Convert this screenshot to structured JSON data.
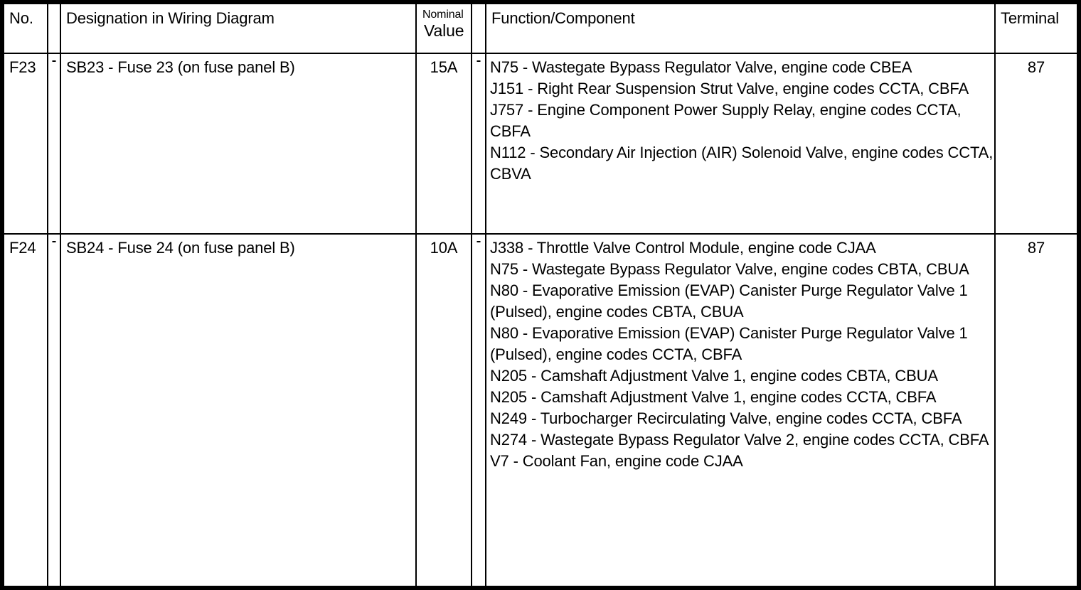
{
  "colors": {
    "border": "#000000",
    "background": "#ffffff",
    "text": "#000000"
  },
  "icons": {
    "row_marker": "tiny-dash-artifact"
  },
  "table": {
    "headers": {
      "no": "No.",
      "designation": "Designation in Wiring Diagram",
      "nominal_line1": "Nominal",
      "nominal_line2": "Value",
      "function": "Function/Component",
      "terminal": "Terminal"
    },
    "rows": [
      {
        "no": "F23",
        "designation": "SB23 - Fuse 23 (on fuse panel B)",
        "nominal_value": "15A",
        "terminal": "87",
        "functions": [
          "N75 - Wastegate Bypass Regulator Valve, engine code CBEA",
          "J151 - Right Rear Suspension Strut Valve, engine codes CCTA, CBFA",
          "J757 - Engine Component Power Supply Relay, engine codes CCTA, CBFA",
          "N112 - Secondary Air Injection (AIR) Solenoid Valve, engine codes CCTA, CBVA"
        ]
      },
      {
        "no": "F24",
        "designation": "SB24 - Fuse 24 (on fuse panel B)",
        "nominal_value": "10A",
        "terminal": "87",
        "functions": [
          "J338 - Throttle Valve Control Module, engine code CJAA",
          "N75 - Wastegate Bypass Regulator Valve, engine codes CBTA, CBUA",
          "N80 - Evaporative Emission (EVAP) Canister Purge Regulator Valve 1 (Pulsed), engine codes CBTA, CBUA",
          "N80 - Evaporative Emission (EVAP) Canister Purge Regulator Valve 1 (Pulsed), engine codes CCTA, CBFA",
          "N205 - Camshaft Adjustment Valve 1, engine codes CBTA, CBUA",
          "N205 - Camshaft Adjustment Valve 1, engine codes CCTA, CBFA",
          "N249 - Turbocharger Recirculating Valve, engine codes CCTA, CBFA",
          "N274 - Wastegate Bypass Regulator Valve 2, engine codes CCTA, CBFA",
          "V7 - Coolant Fan, engine code CJAA"
        ]
      }
    ]
  }
}
